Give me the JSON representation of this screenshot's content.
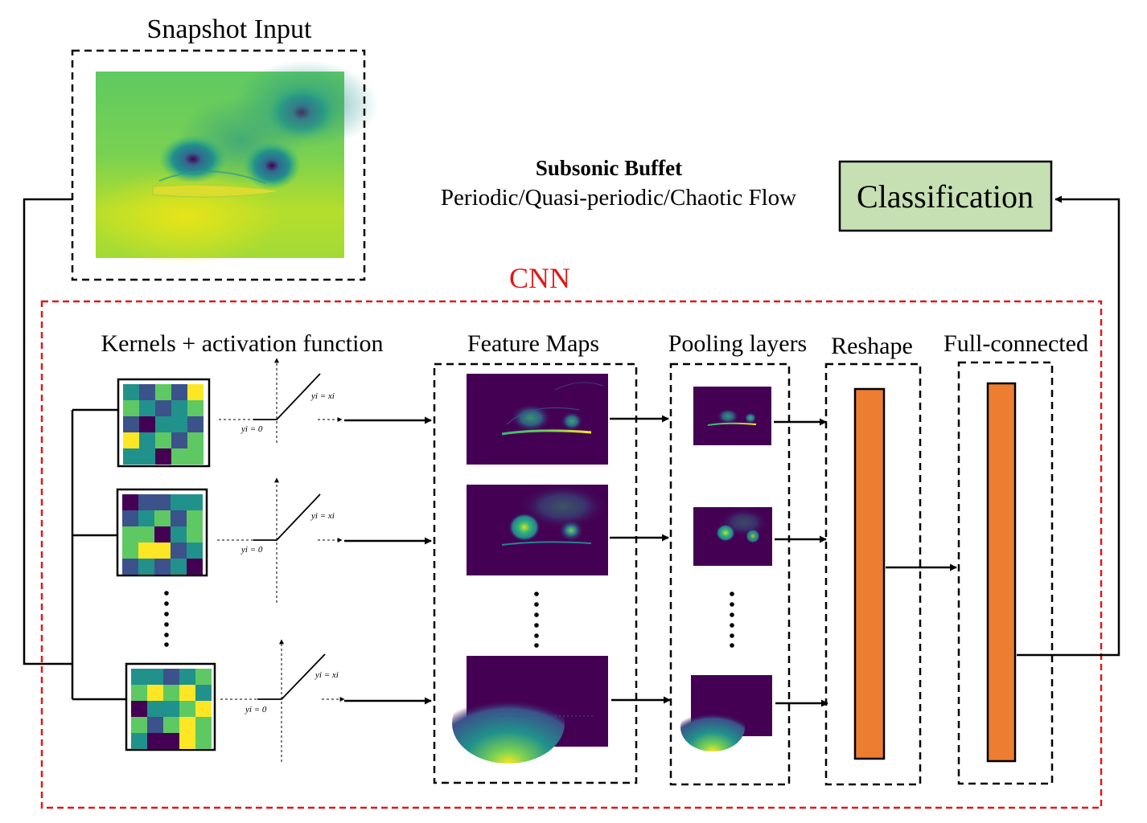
{
  "snapshot_title": "Snapshot Input",
  "output": {
    "heading": "Subsonic Buffet",
    "subheading": "Periodic/Quasi-periodic/Chaotic Flow",
    "box_label": "Classification"
  },
  "cnn": {
    "label": "CNN",
    "sections": {
      "kernels": "Kernels + activation function",
      "feature_maps": "Feature Maps",
      "pooling": "Pooling layers",
      "reshape": "Reshape",
      "full_connected": "Full-connected"
    },
    "relu": {
      "positive_label": "yi = xi",
      "zero_label": "yi = 0"
    }
  },
  "colors": {
    "cnn_border": "#e01818",
    "classification_fill": "#c6e0b4",
    "vector_fill": "#ed7d31",
    "viridis_dark": "#440154",
    "viridis_blue": "#3b528b",
    "viridis_teal": "#21918c",
    "viridis_green": "#5ec962",
    "viridis_yellow": "#fde725"
  }
}
